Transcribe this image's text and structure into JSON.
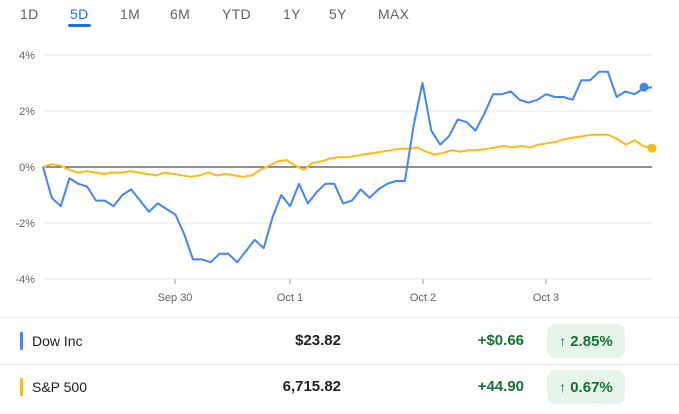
{
  "tabs": [
    {
      "label": "1D",
      "active": false
    },
    {
      "label": "5D",
      "active": true
    },
    {
      "label": "1M",
      "active": false
    },
    {
      "label": "6M",
      "active": false
    },
    {
      "label": "YTD",
      "active": false
    },
    {
      "label": "1Y",
      "active": false
    },
    {
      "label": "5Y",
      "active": false
    },
    {
      "label": "MAX",
      "active": false
    }
  ],
  "chart_data": {
    "type": "line",
    "y_unit": "%",
    "ylim": [
      -4,
      4
    ],
    "y_ticks": [
      "4%",
      "2%",
      "0%",
      "-2%",
      "-4%"
    ],
    "x_ticks": [
      "Sep 30",
      "Oct 1",
      "Oct 2",
      "Oct 3"
    ],
    "series": [
      {
        "name": "Dow Inc",
        "color": "#4285f4",
        "values": [
          0.0,
          -1.1,
          -1.4,
          -0.4,
          -0.6,
          -0.7,
          -1.2,
          -1.2,
          -1.4,
          -1.0,
          -0.8,
          -1.2,
          -1.6,
          -1.3,
          -1.5,
          -1.7,
          -2.4,
          -3.3,
          -3.3,
          -3.4,
          -3.1,
          -3.1,
          -3.4,
          -3.0,
          -2.6,
          -2.9,
          -1.8,
          -1.0,
          -1.4,
          -0.6,
          -1.3,
          -0.9,
          -0.6,
          -0.6,
          -1.3,
          -1.2,
          -0.8,
          -1.1,
          -0.8,
          -0.6,
          -0.5,
          -0.5,
          1.5,
          3.0,
          1.3,
          0.8,
          1.1,
          1.7,
          1.6,
          1.3,
          1.9,
          2.6,
          2.6,
          2.7,
          2.4,
          2.3,
          2.4,
          2.6,
          2.5,
          2.5,
          2.4,
          3.1,
          3.1,
          3.4,
          3.4,
          2.5,
          2.7,
          2.6,
          2.8,
          2.85
        ]
      },
      {
        "name": "S&P 500",
        "color": "#f9bc15",
        "values": [
          0.0,
          0.1,
          0.05,
          -0.1,
          -0.2,
          -0.15,
          -0.2,
          -0.25,
          -0.2,
          -0.2,
          -0.15,
          -0.2,
          -0.25,
          -0.3,
          -0.2,
          -0.25,
          -0.3,
          -0.35,
          -0.3,
          -0.2,
          -0.3,
          -0.25,
          -0.3,
          -0.35,
          -0.3,
          -0.1,
          0.05,
          0.2,
          0.25,
          0.05,
          -0.1,
          0.15,
          0.2,
          0.3,
          0.35,
          0.35,
          0.4,
          0.45,
          0.5,
          0.55,
          0.6,
          0.65,
          0.65,
          0.7,
          0.55,
          0.45,
          0.5,
          0.6,
          0.55,
          0.6,
          0.6,
          0.65,
          0.7,
          0.75,
          0.7,
          0.75,
          0.7,
          0.8,
          0.85,
          0.9,
          1.0,
          1.05,
          1.1,
          1.15,
          1.15,
          1.15,
          1.0,
          0.8,
          0.95,
          0.75,
          0.67
        ]
      }
    ]
  },
  "rows": [
    {
      "name": "Dow Inc",
      "color": "#4285f4",
      "price": "$23.82",
      "change": "+$0.66",
      "pct": "2.85%",
      "arrow": "↑"
    },
    {
      "name": "S&P 500",
      "color": "#f9bc15",
      "price": "6,715.82",
      "change": "+44.90",
      "pct": "0.67%",
      "arrow": "↑"
    }
  ]
}
